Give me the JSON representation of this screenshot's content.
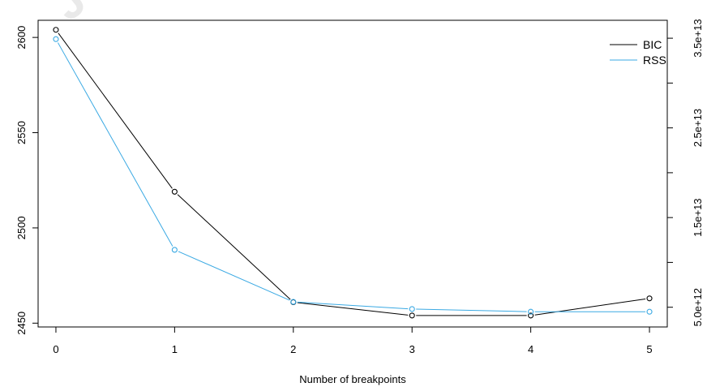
{
  "chart_data": {
    "type": "line",
    "title": "",
    "xlabel": "Number of breakpoints",
    "ylabel": "",
    "x": [
      0,
      1,
      2,
      3,
      4,
      5
    ],
    "xlim": [
      -0.15,
      5.15
    ],
    "x_ticks": [
      "0",
      "1",
      "2",
      "3",
      "4",
      "5"
    ],
    "y_left": {
      "lim": [
        2448,
        2609
      ],
      "ticks": [
        "2450",
        "2500",
        "2550",
        "2600"
      ],
      "tick_values": [
        2450,
        2500,
        2550,
        2600
      ]
    },
    "y_right": {
      "lim": [
        2800000000000.0,
        37000000000000.0
      ],
      "ticks": [
        "5.0e+12",
        "1.5e+13",
        "2.5e+13",
        "3.5e+13"
      ],
      "tick_values": [
        5000000000000.0,
        15000000000000.0,
        25000000000000.0,
        35000000000000.0
      ],
      "minor_tick_values": [
        10000000000000.0,
        20000000000000.0,
        30000000000000.0
      ]
    },
    "series": [
      {
        "name": "BIC",
        "axis": "left",
        "color": "#000000",
        "values": [
          2604,
          2519,
          2461,
          2454,
          2454,
          2463
        ]
      },
      {
        "name": "RSS",
        "axis": "right",
        "color": "#3aa9e3",
        "values": [
          34900000000000.0,
          11400000000000.0,
          5600000000000.0,
          4800000000000.0,
          4500000000000.0,
          4500000000000.0
        ]
      }
    ],
    "legend": {
      "position": "top-right"
    },
    "grid": false
  }
}
